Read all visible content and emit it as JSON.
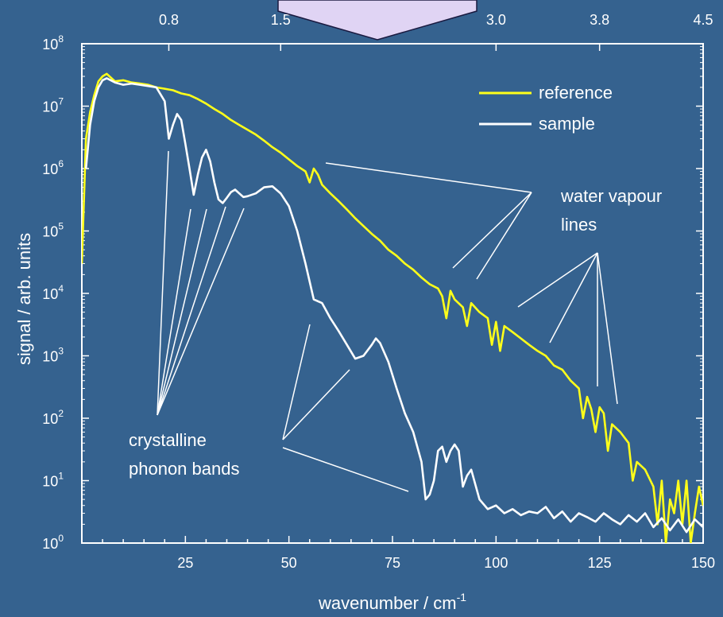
{
  "colors": {
    "background": "#35628f",
    "frame": "#ffffff",
    "reference": "#ffff1a",
    "sample": "#ffffff",
    "badge_fill": "#e0d4f4",
    "badge_stroke": "#1a1a40"
  },
  "chart_data": {
    "type": "line",
    "xlabel": "wavenumber / cm",
    "xlabel_sup": "-1",
    "ylabel": "signal / arb. units",
    "xlim": [
      0,
      150
    ],
    "ylim_log10": [
      0,
      8
    ],
    "y_scale": "log",
    "x_ticks": [
      {
        "value": 25,
        "label": "25"
      },
      {
        "value": 50,
        "label": "50"
      },
      {
        "value": 75,
        "label": "75"
      },
      {
        "value": 100,
        "label": "100"
      },
      {
        "value": 125,
        "label": "125"
      },
      {
        "value": 150,
        "label": "150"
      }
    ],
    "y_ticks": [
      {
        "exp": 0,
        "base": "10",
        "sup": "0"
      },
      {
        "exp": 1,
        "base": "10",
        "sup": "1"
      },
      {
        "exp": 2,
        "base": "10",
        "sup": "2"
      },
      {
        "exp": 3,
        "base": "10",
        "sup": "3"
      },
      {
        "exp": 4,
        "base": "10",
        "sup": "4"
      },
      {
        "exp": 5,
        "base": "10",
        "sup": "5"
      },
      {
        "exp": 6,
        "base": "10",
        "sup": "6"
      },
      {
        "exp": 7,
        "base": "10",
        "sup": "7"
      },
      {
        "exp": 8,
        "base": "10",
        "sup": "8"
      }
    ],
    "top_axis": {
      "ticks": [
        {
          "value": 21,
          "label": "0.8"
        },
        {
          "value": 48,
          "label": "1.5"
        },
        {
          "value": 100,
          "label": "3.0"
        },
        {
          "value": 125,
          "label": "3.8"
        },
        {
          "value": 150,
          "label": "4.5"
        }
      ]
    },
    "legend": {
      "placement": "top-right",
      "entries": [
        {
          "label": "reference",
          "series": "reference"
        },
        {
          "label": "sample",
          "series": "sample"
        }
      ]
    },
    "series": [
      {
        "name": "reference",
        "color": "#ffff1a",
        "x": [
          0,
          1,
          2,
          3,
          4,
          5,
          6,
          8,
          10,
          12,
          14,
          16,
          18,
          20,
          22,
          24,
          26,
          28,
          30,
          32,
          34,
          36,
          38,
          40,
          42,
          44,
          46,
          48,
          50,
          52,
          54,
          55,
          56,
          57,
          58,
          60,
          62,
          64,
          66,
          68,
          70,
          72,
          74,
          76,
          78,
          80,
          82,
          84,
          86,
          87,
          88,
          89,
          90,
          92,
          93,
          94,
          96,
          98,
          99,
          100,
          101,
          102,
          104,
          106,
          108,
          110,
          112,
          114,
          116,
          118,
          120,
          121,
          122,
          123,
          124,
          125,
          126,
          127,
          128,
          130,
          132,
          133,
          134,
          136,
          138,
          139,
          140,
          141,
          142,
          143,
          144,
          145,
          146,
          147,
          148,
          149,
          150
        ],
        "y": [
          30000.0,
          3000000.0,
          8000000.0,
          15000000.0,
          25000000.0,
          30000000.0,
          33000000.0,
          25000000.0,
          26000000.0,
          24000000.0,
          23000000.0,
          22000000.0,
          20000000.0,
          19000000.0,
          18000000.0,
          16000000.0,
          15000000.0,
          13000000.0,
          11000000.0,
          9000000.0,
          7500000.0,
          6000000.0,
          5000000.0,
          4200000.0,
          3500000.0,
          2800000.0,
          2200000.0,
          1800000.0,
          1400000.0,
          1100000.0,
          900000.0,
          600000.0,
          1000000.0,
          800000.0,
          550000.0,
          400000.0,
          300000.0,
          220000.0,
          160000.0,
          120000.0,
          90000.0,
          70000.0,
          50000.0,
          40000.0,
          30000.0,
          24000.0,
          18000.0,
          14000.0,
          12000.0,
          9000.0,
          4000.0,
          11000.0,
          8000.0,
          6000.0,
          3000.0,
          7000.0,
          5000.0,
          4000.0,
          1500.0,
          3500.0,
          1200.0,
          3000.0,
          2400.0,
          1900.0,
          1500.0,
          1200.0,
          1000.0,
          700.0,
          600.0,
          400.0,
          300.0,
          100.0,
          220.0,
          140.0,
          60.0,
          150.0,
          120.0,
          30.0,
          80.0,
          60.0,
          40.0,
          10.0,
          20.0,
          15.0,
          8,
          2,
          10.0,
          1,
          5,
          3,
          10.0,
          2,
          10.0,
          1,
          3,
          8,
          4
        ]
      },
      {
        "name": "sample",
        "color": "#ffffff",
        "x": [
          1,
          2,
          3,
          4,
          5,
          6,
          8,
          10,
          12,
          14,
          16,
          18,
          20,
          21,
          22,
          23,
          24,
          25,
          26,
          27,
          28,
          29,
          30,
          31,
          32,
          33,
          34,
          35,
          36,
          37,
          38,
          39,
          40,
          42,
          44,
          46,
          48,
          50,
          52,
          54,
          56,
          58,
          60,
          62,
          64,
          66,
          68,
          70,
          71,
          72,
          74,
          76,
          78,
          80,
          82,
          83,
          84,
          85,
          86,
          87,
          88,
          89,
          90,
          91,
          92,
          93,
          94,
          96,
          98,
          100,
          102,
          104,
          106,
          108,
          110,
          112,
          114,
          116,
          118,
          120,
          122,
          124,
          126,
          128,
          130,
          132,
          134,
          136,
          138,
          140,
          142,
          144,
          146,
          148,
          150
        ],
        "y": [
          1000000.0,
          5000000.0,
          12000000.0,
          20000000.0,
          26000000.0,
          28000000.0,
          24000000.0,
          22000000.0,
          23000000.0,
          22000000.0,
          21000000.0,
          20000000.0,
          12000000.0,
          3000000.0,
          5000000.0,
          7500000.0,
          6000000.0,
          2500000.0,
          1000000.0,
          380000.0,
          800000.0,
          1500000.0,
          2000000.0,
          1300000.0,
          600000.0,
          320000.0,
          280000.0,
          340000.0,
          420000.0,
          460000.0,
          400000.0,
          350000.0,
          360000.0,
          400000.0,
          500000.0,
          520000.0,
          400000.0,
          250000.0,
          100000.0,
          30000.0,
          8000.0,
          7000.0,
          4000.0,
          2500.0,
          1500.0,
          900.0,
          1000.0,
          1500.0,
          1900.0,
          1600.0,
          800.0,
          300.0,
          120.0,
          60.0,
          20.0,
          5,
          6,
          10.0,
          30.0,
          35.0,
          20.0,
          30.0,
          38.0,
          30.0,
          8,
          12.0,
          15.0,
          5,
          3.5,
          4,
          3,
          3.5,
          2.8,
          3.2,
          3,
          3.8,
          2.5,
          3.2,
          2.2,
          3,
          2.6,
          2.2,
          3,
          2.4,
          2,
          2.8,
          2.2,
          3,
          1.8,
          2.5,
          1.6,
          2.4,
          1.5,
          2.4,
          1.8
        ]
      }
    ],
    "annotations": [
      {
        "text": "water vapour",
        "text2": "lines"
      },
      {
        "text": "crystalline",
        "text2": "phonon bands"
      }
    ]
  }
}
